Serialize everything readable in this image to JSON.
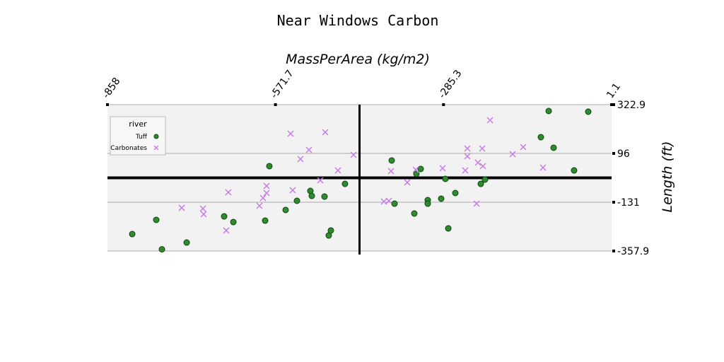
{
  "chart_data": {
    "type": "scatter",
    "title": "Near Windows Carbon",
    "x_label": "MassPerArea (kg/m2)",
    "y_label": "Length (ft)",
    "xlim": [
      -858.0,
      1.1
    ],
    "ylim": [
      -357.9,
      322.9
    ],
    "xticks": [
      -858.0,
      -571.7,
      -285.3,
      1.1
    ],
    "yticks": [
      -357.9,
      -131.0,
      96.0,
      322.9
    ],
    "grid": true,
    "legend_title": "river",
    "legend_position": "upper-left",
    "series": [
      {
        "name": "Tuff",
        "color": "#2e8b2e",
        "marker": "circle",
        "x": [
          -815.8,
          -774.9,
          -765.2,
          -723.0,
          -659.2,
          -643.5,
          -589.3,
          -582.1,
          -554.4,
          -535.1,
          -512.2,
          -509.8,
          -488.1,
          -480.9,
          -477.3,
          -453.2,
          -373.6,
          -368.8,
          -335.1,
          -331.5,
          -324.2,
          -312.2,
          -312.2,
          -289.3,
          -282.1,
          -277.2,
          -265.2,
          -221.8,
          -214.6,
          -119.4,
          -106.1,
          -97.7,
          -62.8,
          -38.7
        ],
        "values": [
          -279.0,
          -213.2,
          -350.0,
          -318.5,
          -196.8,
          -223.1,
          -216.5,
          36.8,
          -167.1,
          -124.4,
          -78.4,
          -101.4,
          -104.7,
          -285.6,
          -262.5,
          -45.5,
          63.1,
          -137.6,
          -183.6,
          0.6,
          23.6,
          -121.1,
          -137.6,
          -114.5,
          -22.4,
          -252.7,
          -88.2,
          -45.5,
          -25.7,
          171.6,
          293.3,
          122.3,
          17.0,
          290.0
        ]
      },
      {
        "name": "Carbonates",
        "color": "#c77ce8",
        "marker": "x",
        "x": [
          -731.5,
          -695.3,
          -694.1,
          -655.6,
          -652.0,
          -599.0,
          -592.9,
          -586.9,
          -586.9,
          -545.9,
          -542.3,
          -529.1,
          -514.6,
          -495.3,
          -486.9,
          -465.2,
          -438.7,
          -386.9,
          -378.4,
          -374.8,
          -347.1,
          -332.7,
          -286.9,
          -248.3,
          -244.7,
          -244.7,
          -229.0,
          -219.4,
          -226.6,
          -218.2,
          -206.1,
          -167.6,
          -149.5,
          -115.8
        ],
        "values": [
          -157.3,
          -160.6,
          -186.9,
          -262.5,
          -84.9,
          -147.4,
          -111.2,
          -88.2,
          -55.3,
          188.1,
          -75.1,
          69.6,
          112.4,
          -29.0,
          194.6,
          17.0,
          89.4,
          -127.7,
          -124.4,
          13.7,
          -38.9,
          20.3,
          26.9,
          17.0,
          119.0,
          82.8,
          -137.6,
          119.0,
          53.2,
          36.8,
          250.5,
          92.7,
          125.6,
          30.2
        ]
      }
    ]
  }
}
